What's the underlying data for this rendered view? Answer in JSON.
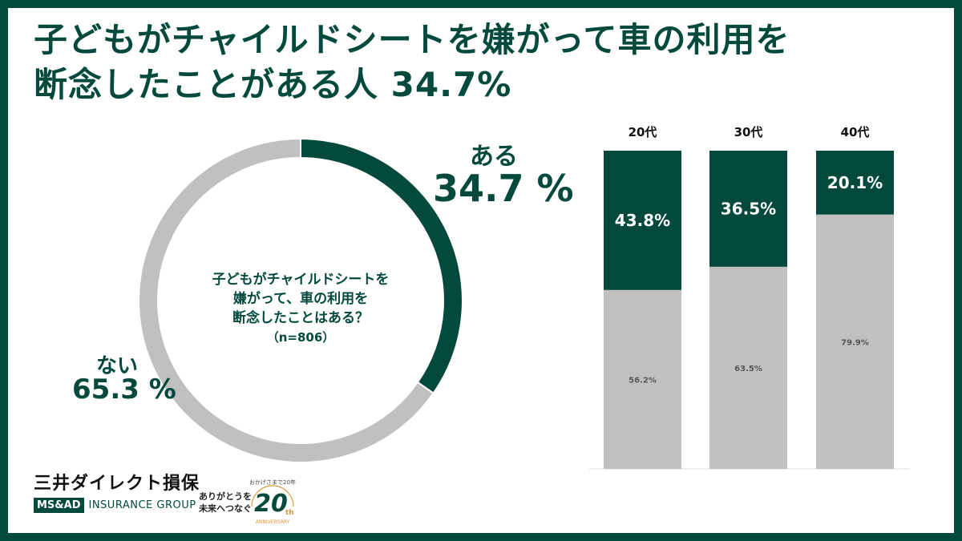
{
  "title": {
    "line1": "子どもがチャイルドシートを嫌がって車の利用を",
    "line2": "断念したことがある人 34.7%"
  },
  "donut": {
    "question_line1": "子どもがチャイルドシートを",
    "question_line2": "嫌がって、車の利用を",
    "question_line3": "断念したことはある？",
    "sample": "（n=806）",
    "yes_label": "ある",
    "yes_pct": "34.7 %",
    "no_label": "ない",
    "no_pct": "65.3 %"
  },
  "chart_data": [
    {
      "type": "pie",
      "categories": [
        "ある",
        "ない"
      ],
      "values": [
        34.7,
        65.3
      ],
      "colors": [
        "#034a3c",
        "#c0c0c0"
      ]
    },
    {
      "type": "bar",
      "stacked": true,
      "categories": [
        "20代",
        "30代",
        "40代"
      ],
      "series": [
        {
          "values": [
            43.8,
            36.5,
            20.1
          ],
          "labels": [
            "43.8%",
            "36.5%",
            "20.1%"
          ],
          "color": "#034a3c"
        },
        {
          "values": [
            56.2,
            63.5,
            79.9
          ],
          "labels": [
            "56.2%",
            "63.5%",
            "79.9%"
          ],
          "color": "#c0c0c0"
        }
      ],
      "ylim": [
        0,
        100
      ]
    }
  ],
  "branding": {
    "company_jp": "三井ダイレクト損保",
    "group_badge": "MS&AD",
    "group_name": "INSURANCE GROUP",
    "slogan_line1": "ありがとうを",
    "slogan_line2": "未来へつなぐ",
    "anniv_top": "おかげさまで20年",
    "anniv_number": "20",
    "anniv_suffix": "th",
    "anniv_word": "ANNIVERSARY"
  },
  "colors": {
    "accent": "#034a3c",
    "neutral": "#c0c0c0",
    "background": "#ffffff"
  }
}
